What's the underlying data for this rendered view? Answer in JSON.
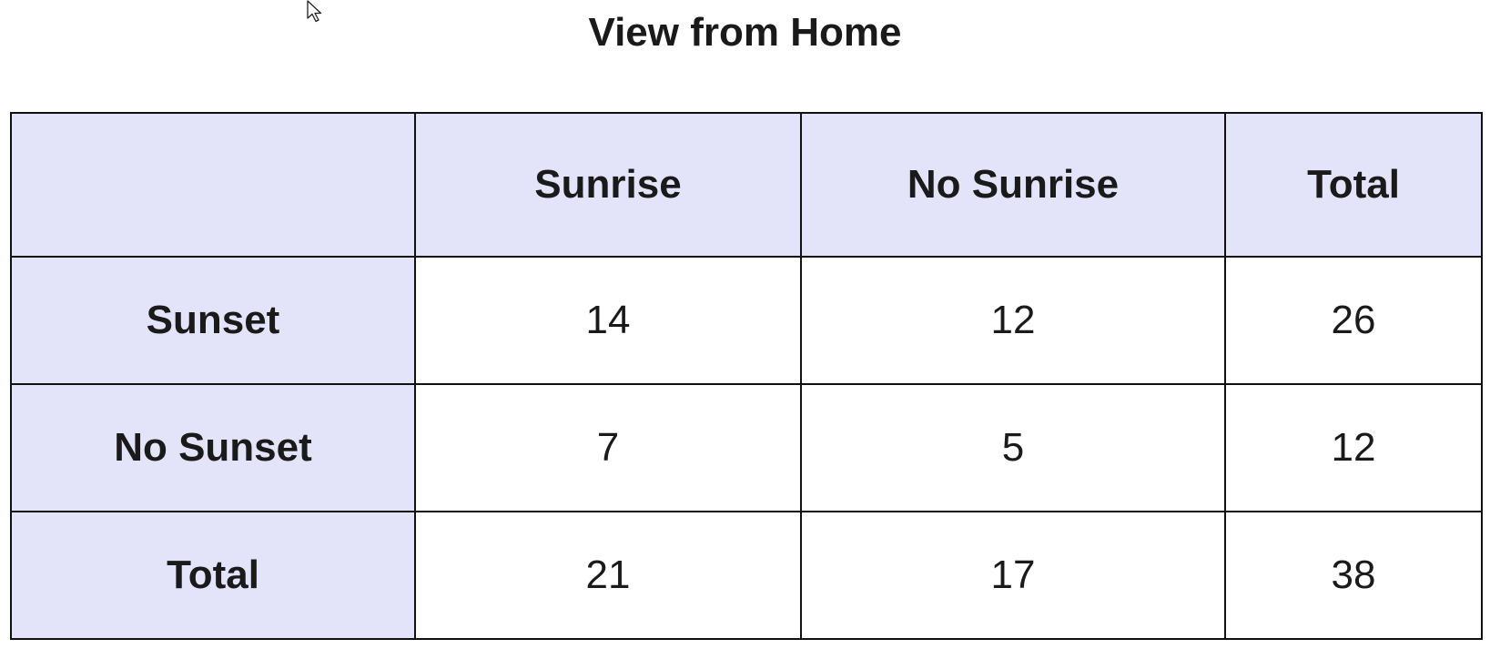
{
  "title": "View from Home",
  "table": {
    "corner": "",
    "columns": [
      "Sunrise",
      "No Sunrise",
      "Total"
    ],
    "rows": [
      {
        "label": "Sunset",
        "values": [
          "14",
          "12",
          "26"
        ]
      },
      {
        "label": "No Sunset",
        "values": [
          "7",
          "5",
          "12"
        ]
      },
      {
        "label": "Total",
        "values": [
          "21",
          "17",
          "38"
        ]
      }
    ]
  },
  "colors": {
    "header_fill": "#e3e3fa",
    "cell_fill": "#ffffff",
    "border": "#111111"
  },
  "icons": {
    "cursor": "mouse-pointer-icon"
  }
}
